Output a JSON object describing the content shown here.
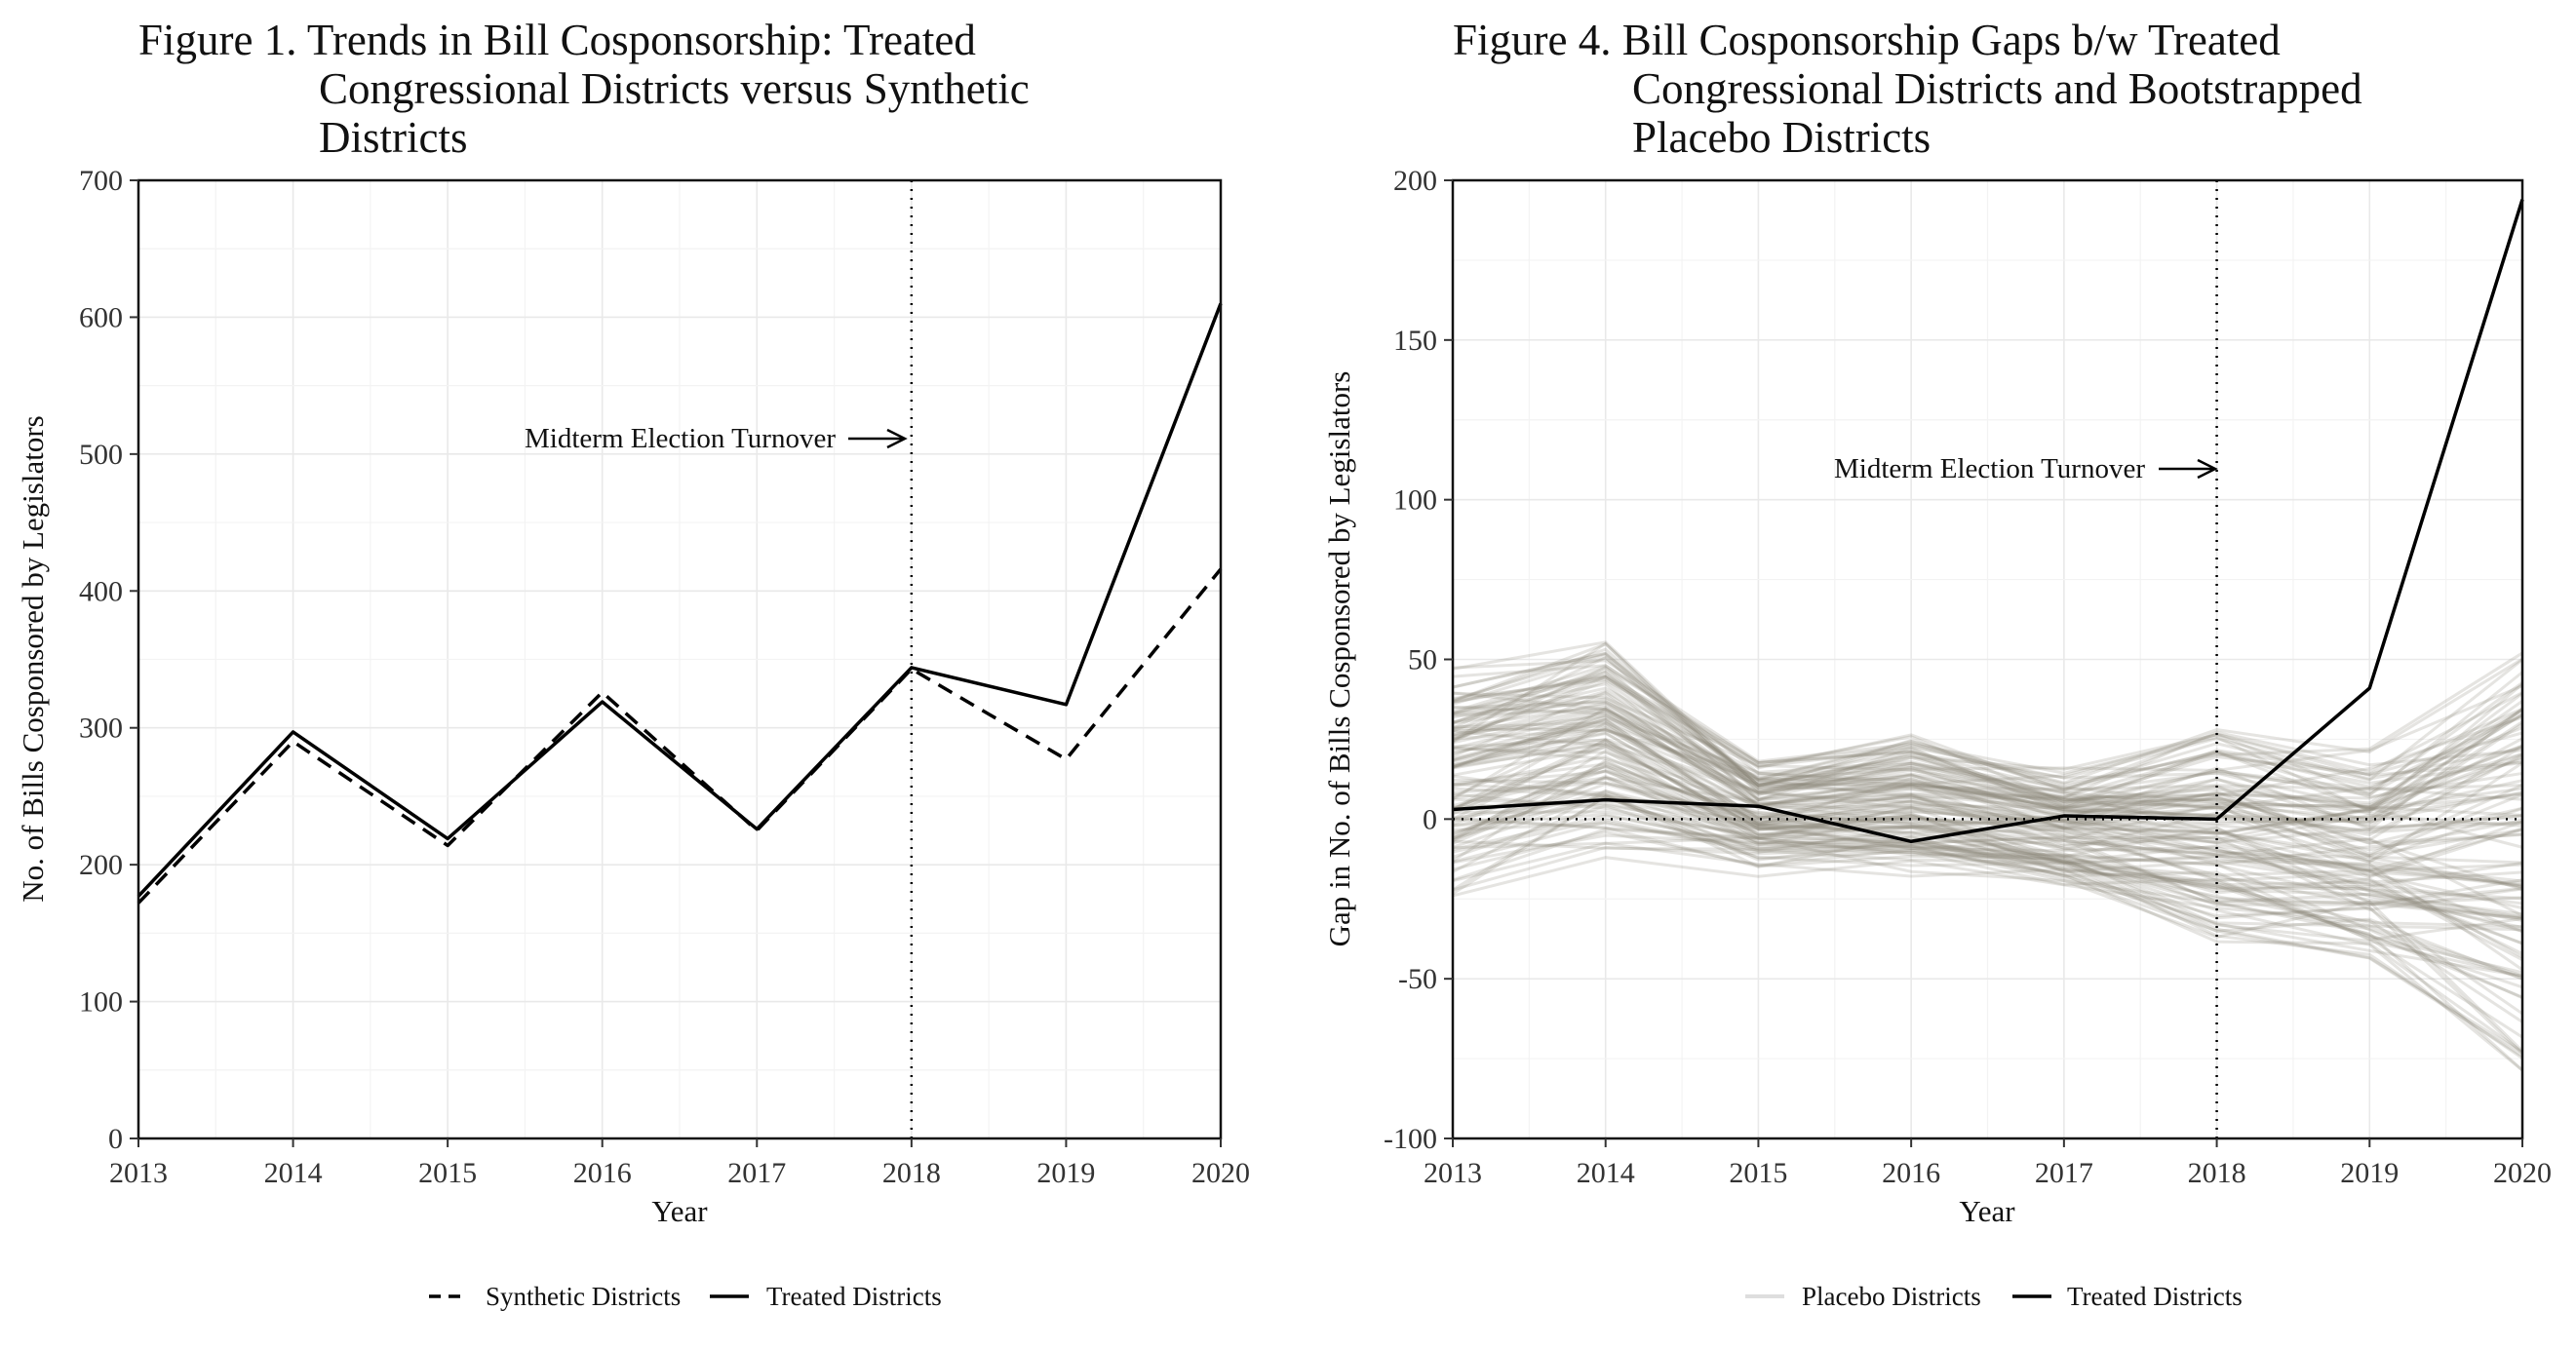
{
  "chart_data": [
    {
      "type": "line",
      "title": "Figure 1. Trends in Bill Cosponsorship: Treated\nCongressional Districts versus Synthetic\nDistricts",
      "xlabel": "Year",
      "ylabel": "No. of Bills Cosponsored by Legislators",
      "x": [
        2013,
        2014,
        2015,
        2016,
        2017,
        2018,
        2019,
        2020
      ],
      "xlim": [
        2013,
        2020
      ],
      "ylim": [
        0,
        700
      ],
      "yticks": [
        0,
        100,
        200,
        300,
        400,
        500,
        600,
        700
      ],
      "grid": true,
      "legend_position": "bottom",
      "series": [
        {
          "name": "Synthetic Districts",
          "style": "dashed",
          "color": "#000000",
          "values": [
            172,
            290,
            214,
            326,
            225,
            343,
            277,
            416
          ]
        },
        {
          "name": "Treated Districts",
          "style": "solid",
          "color": "#000000",
          "values": [
            177,
            297,
            219,
            319,
            226,
            344,
            317,
            610
          ]
        }
      ],
      "vline": 2018,
      "annotation": {
        "text": "Midterm Election Turnover",
        "arrow_to_x": 2018,
        "y": 510
      }
    },
    {
      "type": "line",
      "title": "Figure 4. Bill Cosponsorship Gaps b/w Treated\nCongressional Districts and Bootstrapped\nPlacebo Districts",
      "xlabel": "Year",
      "ylabel": "Gap in No. of Bills Cosponsored by Legislators",
      "x": [
        2013,
        2014,
        2015,
        2016,
        2017,
        2018,
        2019,
        2020
      ],
      "xlim": [
        2013,
        2020
      ],
      "ylim": [
        -100,
        200
      ],
      "yticks": [
        -100,
        -50,
        0,
        50,
        100,
        150,
        200
      ],
      "grid": true,
      "legend_position": "bottom",
      "series": [
        {
          "name": "Treated Districts",
          "style": "solid",
          "color": "#000000",
          "values": [
            3,
            6,
            4,
            -7,
            1,
            0,
            41,
            194
          ]
        }
      ],
      "placebo": {
        "name": "Placebo Districts",
        "color": "#8a8478",
        "count": 120,
        "approx_range_by_year": {
          "2013": [
            -24,
            48
          ],
          "2014": [
            -12,
            58
          ],
          "2015": [
            -18,
            19
          ],
          "2016": [
            -20,
            27
          ],
          "2017": [
            -25,
            17
          ],
          "2018": [
            -42,
            30
          ],
          "2019": [
            -48,
            22
          ],
          "2020": [
            -80,
            52
          ]
        }
      },
      "hline": 0,
      "vline": 2018,
      "annotation": {
        "text": "Midterm Election Turnover",
        "arrow_to_x": 2018,
        "y": 110
      }
    }
  ]
}
